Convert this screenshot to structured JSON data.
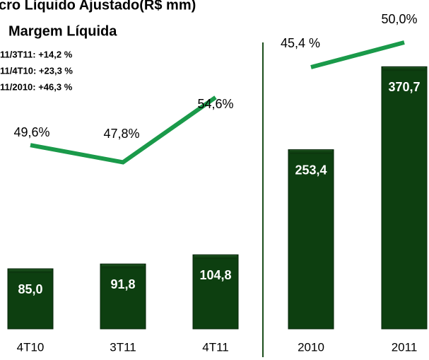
{
  "header": {
    "title": "cro Líquido Ajustado(R$ mm)",
    "subtitle": "Margem Líquida",
    "notes": [
      "11/3T11: +14,2 %",
      "11/4T10: +23,3 %",
      "11/2010: +46,3 %"
    ]
  },
  "chart_data": [
    {
      "type": "bar",
      "categories": [
        "4T10",
        "3T11",
        "4T11"
      ],
      "ylim": [
        0,
        465
      ],
      "y2lim": [
        30.35,
        64.8
      ],
      "series": [
        {
          "type": "bar",
          "color": "#0d3f10",
          "values": [
            85.0,
            91.8,
            104.8
          ],
          "value_labels": [
            "85,0",
            "91,8",
            "104,8"
          ]
        },
        {
          "type": "line",
          "axis": "y2",
          "color": "#1a9a4a",
          "values": [
            49.6,
            47.8,
            54.6
          ],
          "value_labels": [
            "49,6%",
            "47,8%",
            "54,6%"
          ]
        }
      ]
    },
    {
      "type": "bar",
      "categories": [
        "2010",
        "2011"
      ],
      "ylim": [
        0,
        465
      ],
      "y2lim": [
        -3.3,
        57.9
      ],
      "series": [
        {
          "type": "bar",
          "color": "#0d3f10",
          "values": [
            253.4,
            370.7
          ],
          "value_labels": [
            "253,4",
            "370,7"
          ]
        },
        {
          "type": "line",
          "axis": "y2",
          "color": "#1a9a4a",
          "values": [
            45.4,
            50.0
          ],
          "value_labels": [
            "45,4 %",
            "50,0%"
          ]
        }
      ]
    }
  ]
}
